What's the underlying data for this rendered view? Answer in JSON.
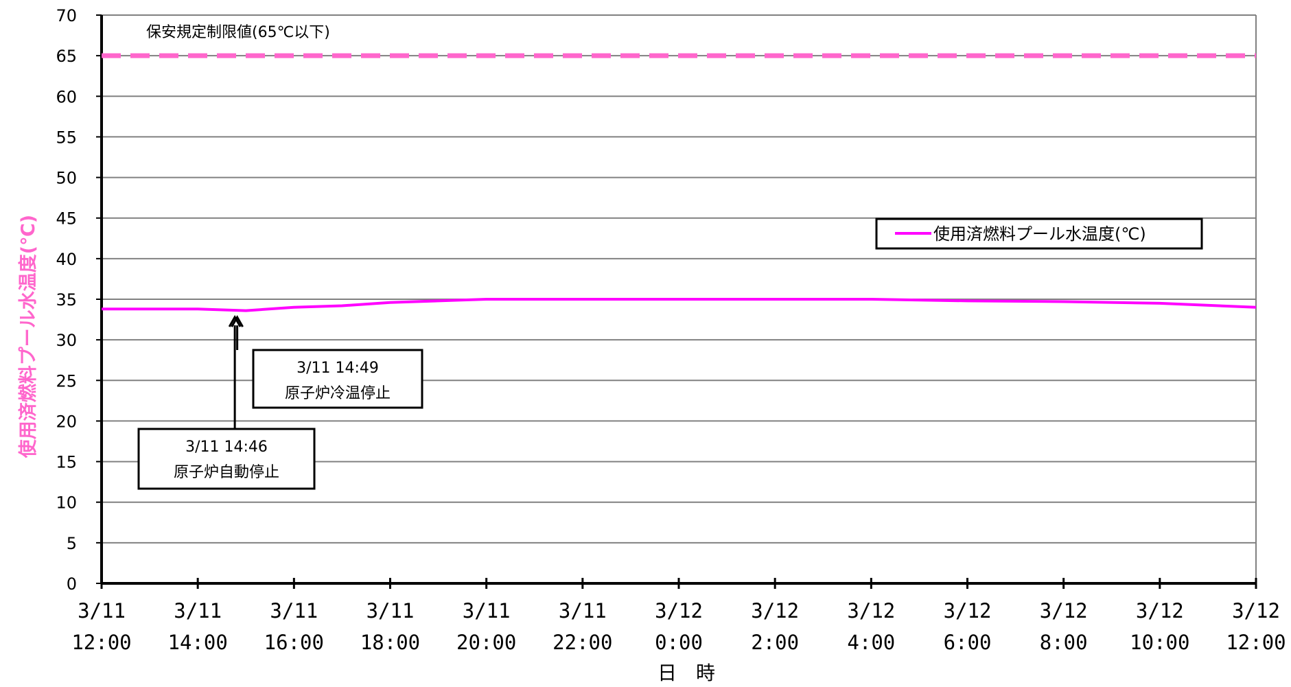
{
  "chart_data": {
    "type": "line",
    "xlabel": "日　時",
    "ylabel": "使用済燃料プール水温度(℃)",
    "ylim": [
      0,
      70
    ],
    "yticks": [
      0,
      5,
      10,
      15,
      20,
      25,
      30,
      35,
      40,
      45,
      50,
      55,
      60,
      65,
      70
    ],
    "xrange_hours": [
      0,
      24
    ],
    "x_tick_labels": [
      {
        "date": "3/11",
        "time": "12:00"
      },
      {
        "date": "3/11",
        "time": "14:00"
      },
      {
        "date": "3/11",
        "time": "16:00"
      },
      {
        "date": "3/11",
        "time": "18:00"
      },
      {
        "date": "3/11",
        "time": "20:00"
      },
      {
        "date": "3/11",
        "time": "22:00"
      },
      {
        "date": "3/12",
        "time": "0:00"
      },
      {
        "date": "3/12",
        "time": "2:00"
      },
      {
        "date": "3/12",
        "time": "4:00"
      },
      {
        "date": "3/12",
        "time": "6:00"
      },
      {
        "date": "3/12",
        "time": "8:00"
      },
      {
        "date": "3/12",
        "time": "10:00"
      },
      {
        "date": "3/12",
        "time": "12:00"
      }
    ],
    "grid": true,
    "legend_position": "right",
    "series": [
      {
        "name": "使用済燃料プール水温度(℃)",
        "color": "#FF00FF",
        "x_hours": [
          0,
          2,
          3,
          4,
          5,
          6,
          8,
          10,
          12,
          14,
          16,
          18,
          20,
          22,
          24
        ],
        "values": [
          33.8,
          33.8,
          33.6,
          34.0,
          34.2,
          34.6,
          35.0,
          35.0,
          35.0,
          35.0,
          35.0,
          34.8,
          34.7,
          34.5,
          34.0
        ]
      }
    ],
    "reference_line": {
      "label": "保安規定制限値(65℃以下)",
      "value": 65,
      "color": "#FF66CC",
      "style": "dashed"
    },
    "annotations": [
      {
        "time_label": "3/11 14:46",
        "text": "原子炉自動停止",
        "x_hours": 2.77
      },
      {
        "time_label": "3/11 14:49",
        "text": "原子炉冷温停止",
        "x_hours": 2.82
      }
    ],
    "colors": {
      "ylabel": "#FF66CC",
      "grid": "#808080",
      "axis": "#000000"
    }
  }
}
